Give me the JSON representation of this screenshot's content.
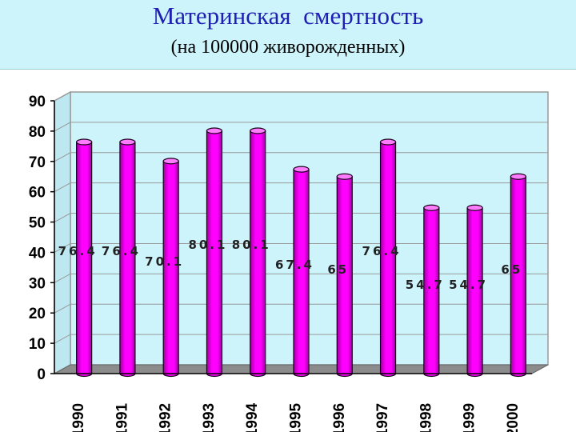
{
  "header": {
    "title": "Материнская  смертность",
    "subtitle": "(на 100000 живорожденных)"
  },
  "colors": {
    "header_bg": "#cdf3fb",
    "title": "#1f1fb4",
    "plot_bg": "#cdf3fb",
    "bar": "#ff00ff",
    "bar_dark": "#a000a0",
    "bar_top": "#ff7cff",
    "floor": "#8c8c8c"
  },
  "chart_data": {
    "type": "bar",
    "categories": [
      "1990",
      "1991",
      "1992",
      "1993",
      "1994",
      "1995",
      "1996",
      "1997",
      "1998",
      "1999",
      "2000"
    ],
    "values": [
      76.4,
      76.4,
      70.1,
      80.1,
      80.1,
      67.4,
      65,
      76.4,
      54.7,
      54.7,
      65
    ],
    "labels": [
      "76.4",
      "76.4",
      "70.1",
      "80.1",
      "80.1",
      "67.4",
      "65",
      "76.4",
      "54.7",
      "54.7",
      "65"
    ],
    "yticks": [
      "0",
      "10",
      "20",
      "30",
      "40",
      "50",
      "60",
      "70",
      "80",
      "90"
    ],
    "ylim": [
      0,
      90
    ],
    "grid": true,
    "legend": "none",
    "style": "3d-cylinder"
  }
}
